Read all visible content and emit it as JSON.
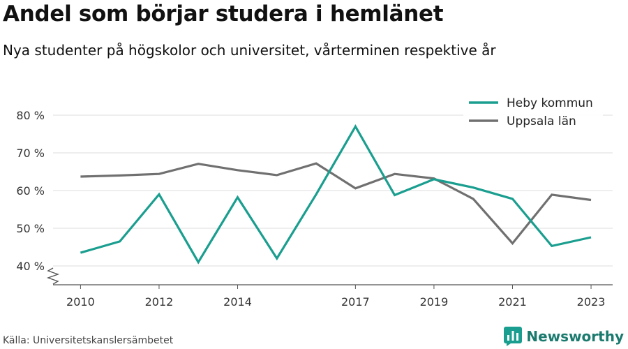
{
  "title": "Andel som börjar studera i hemlänet",
  "subtitle": "Nya studenter på högskolor och universitet, vårterminen respektive år",
  "source": "Källa: Universitetskanslersämbetet",
  "brand": "Newsworthy",
  "chart_data": {
    "type": "line",
    "x": [
      2010,
      2011,
      2012,
      2013,
      2014,
      2015,
      2016,
      2017,
      2018,
      2019,
      2020,
      2021,
      2022,
      2023
    ],
    "x_tick_labels": [
      "2010",
      "2012",
      "2014",
      "2017",
      "2019",
      "2021",
      "2023"
    ],
    "x_tick_values": [
      2010,
      2012,
      2014,
      2017,
      2019,
      2021,
      2023
    ],
    "y_ticks": [
      40,
      50,
      60,
      70,
      80
    ],
    "y_tick_labels": [
      "40 %",
      "50 %",
      "60 %",
      "70 %",
      "80 %"
    ],
    "ylim": [
      35,
      85
    ],
    "y_axis_break": true,
    "grid": "horizontal",
    "legend_position": "top-right",
    "series": [
      {
        "name": "Heby kommun",
        "color": "#1a9e8f",
        "values": [
          43.5,
          46.5,
          59,
          41,
          58.2,
          42,
          59,
          77,
          58.8,
          63,
          60.8,
          57.8,
          45.3,
          47.6
        ]
      },
      {
        "name": "Uppsala län",
        "color": "#707070",
        "values": [
          63.7,
          64,
          64.4,
          67.1,
          65.4,
          64.1,
          67.2,
          60.6,
          64.4,
          63.2,
          57.8,
          46,
          58.9,
          57.5
        ]
      }
    ]
  }
}
